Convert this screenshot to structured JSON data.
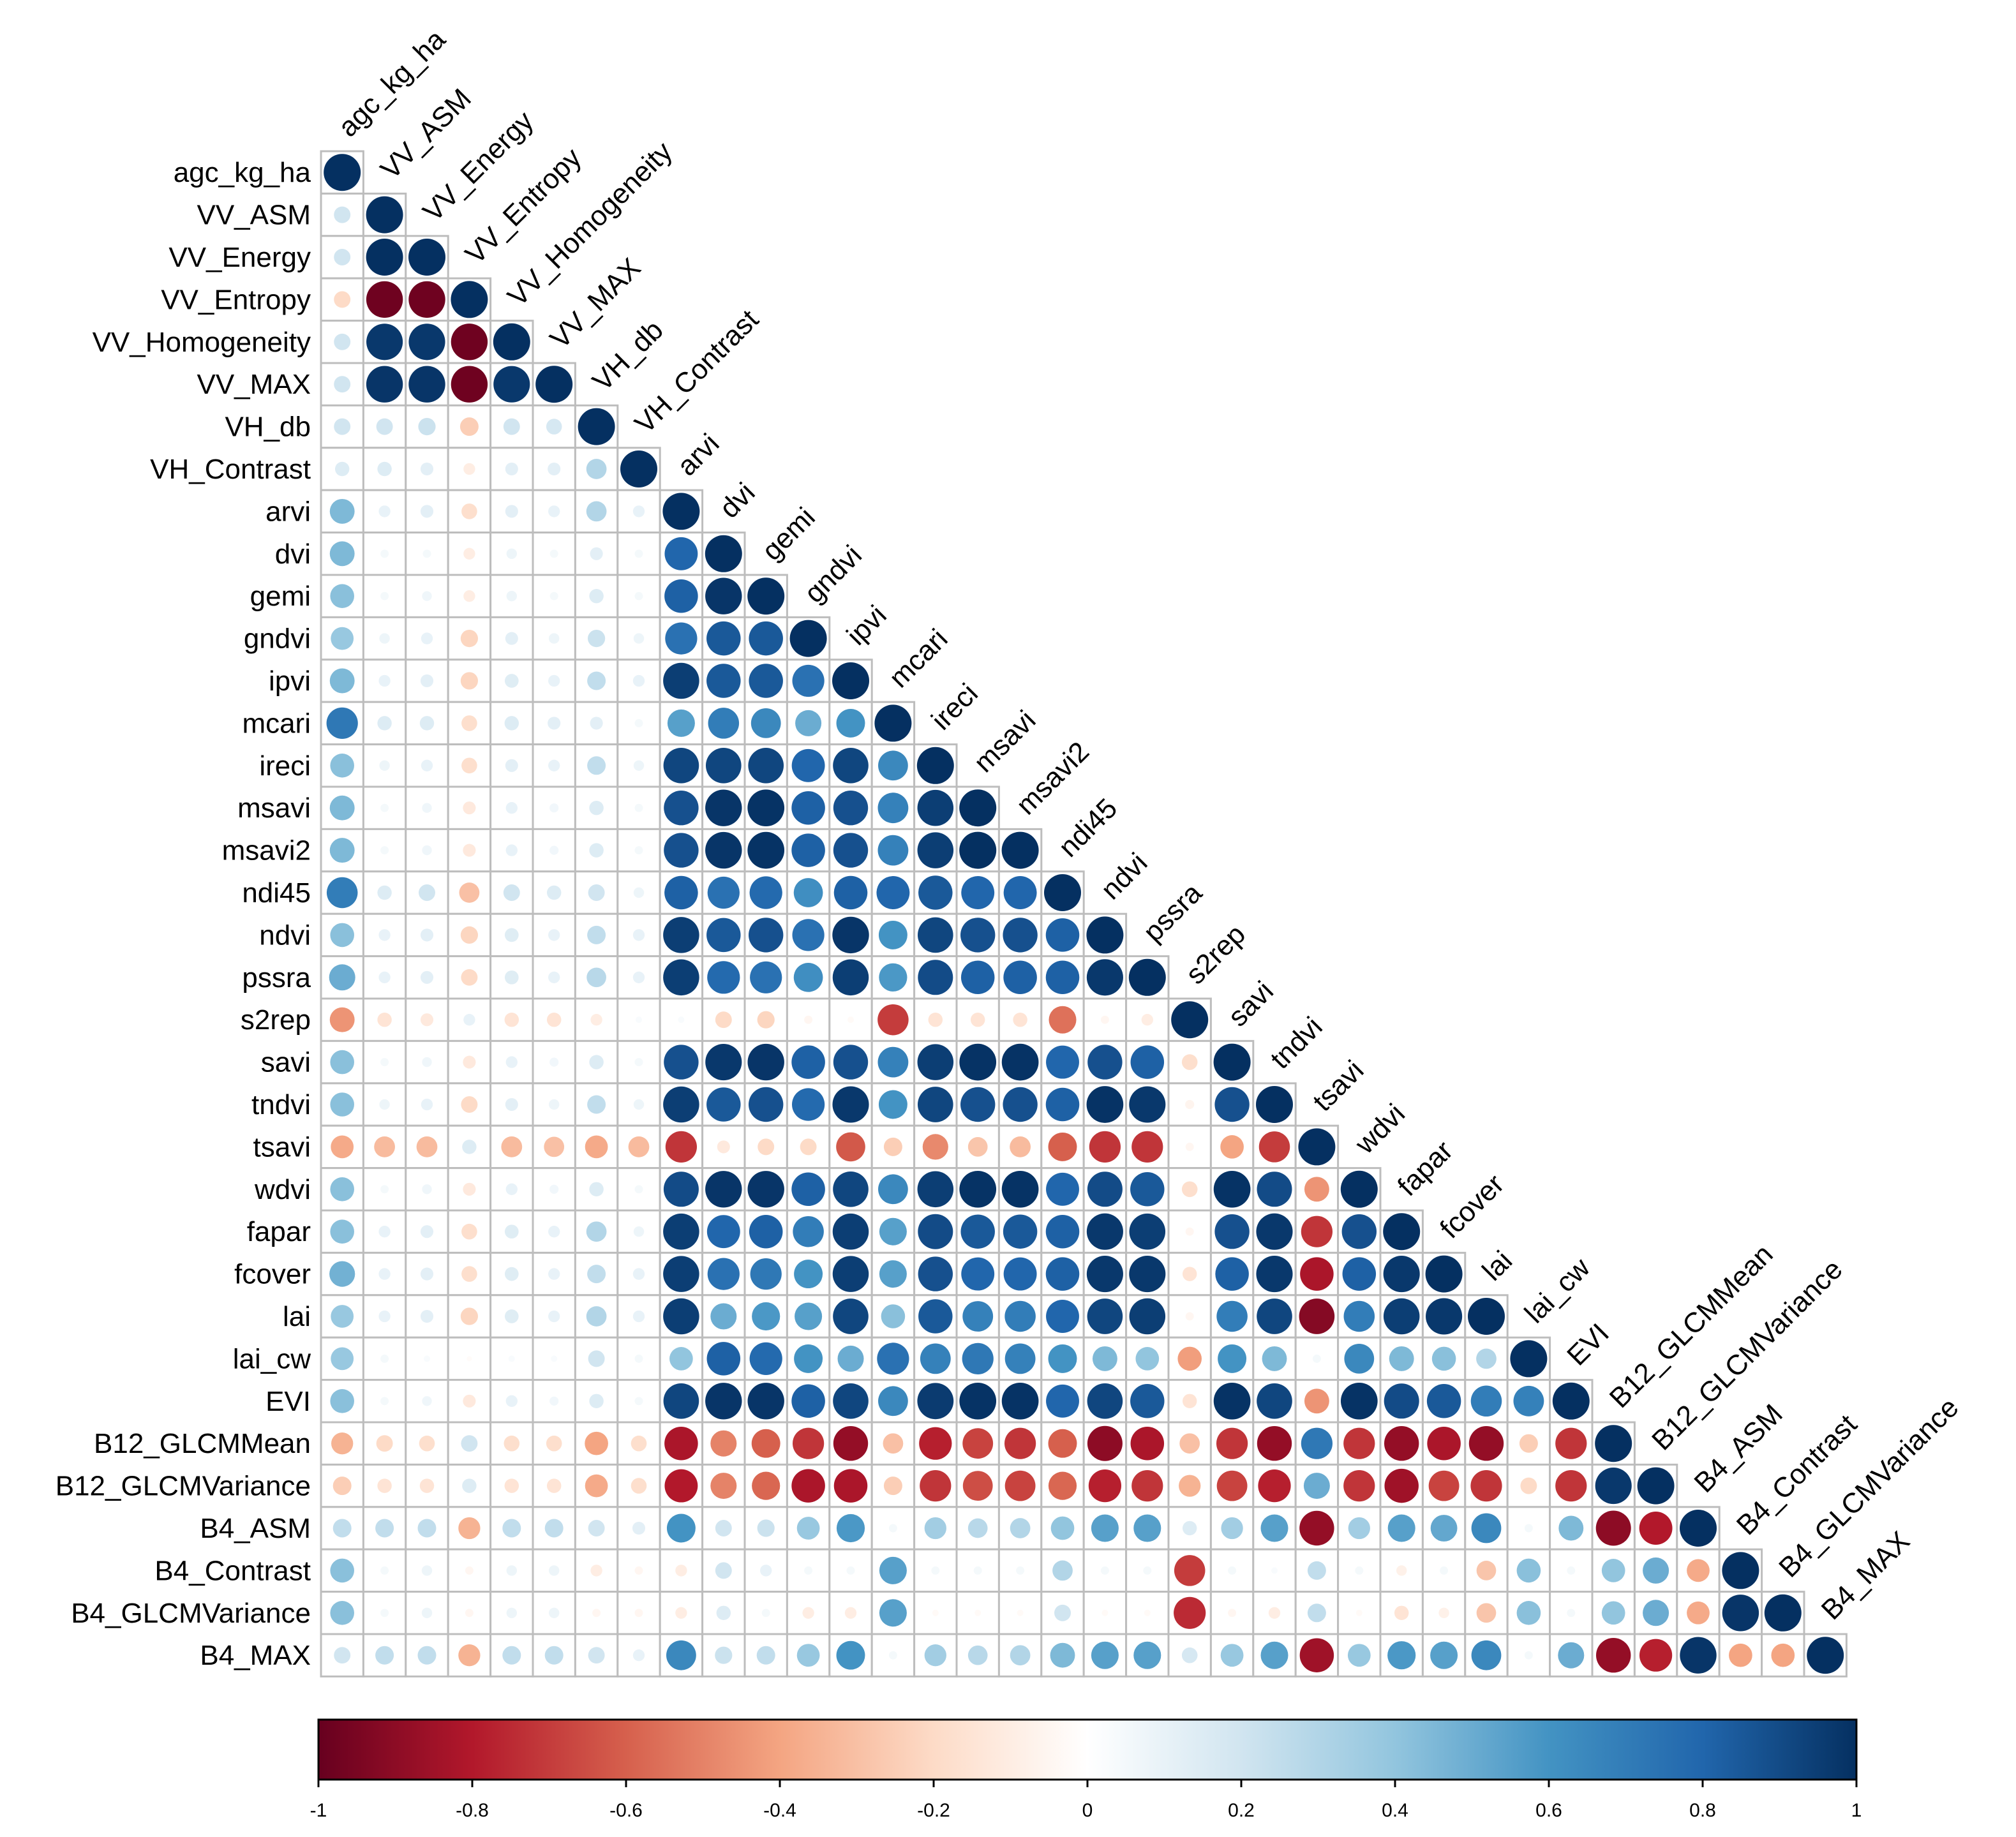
{
  "chart_data": {
    "type": "heatmap",
    "subtype": "correlation-matrix-lower-triangle",
    "marker": "circle",
    "variables": [
      "agc_kg_ha",
      "VV_ASM",
      "VV_Energy",
      "VV_Entropy",
      "VV_Homogeneity",
      "VV_MAX",
      "VH_db",
      "VH_Contrast",
      "arvi",
      "dvi",
      "gemi",
      "gndvi",
      "ipvi",
      "mcari",
      "ireci",
      "msavi",
      "msavi2",
      "ndi45",
      "ndvi",
      "pssra",
      "s2rep",
      "savi",
      "tndvi",
      "tsavi",
      "wdvi",
      "fapar",
      "fcover",
      "lai",
      "lai_cw",
      "EVI",
      "B12_GLCMMean",
      "B12_GLCMVariance",
      "B4_ASM",
      "B4_Contrast",
      "B4_GLCMVariance",
      "B4_MAX"
    ],
    "matrix_lower": [
      [
        1
      ],
      [
        0.2,
        1
      ],
      [
        0.2,
        1,
        1
      ],
      [
        -0.2,
        -0.98,
        -0.98,
        1
      ],
      [
        0.2,
        0.97,
        0.97,
        -0.98,
        1
      ],
      [
        0.2,
        0.98,
        0.98,
        -0.98,
        0.97,
        1
      ],
      [
        0.2,
        0.2,
        0.22,
        -0.25,
        0.2,
        0.18,
        1
      ],
      [
        0.15,
        0.15,
        0.12,
        -0.1,
        0.12,
        0.12,
        0.3,
        1
      ],
      [
        0.45,
        0.1,
        0.12,
        -0.18,
        0.12,
        0.1,
        0.3,
        0.1,
        1
      ],
      [
        0.45,
        0.05,
        0.05,
        -0.1,
        0.08,
        0.05,
        0.12,
        0.05,
        0.8,
        1
      ],
      [
        0.42,
        0.05,
        0.07,
        -0.1,
        0.08,
        0.05,
        0.15,
        0.05,
        0.82,
        0.98,
        1
      ],
      [
        0.38,
        0.08,
        0.1,
        -0.22,
        0.12,
        0.08,
        0.22,
        0.08,
        0.75,
        0.85,
        0.85,
        1
      ],
      [
        0.45,
        0.1,
        0.12,
        -0.22,
        0.14,
        0.1,
        0.25,
        0.1,
        0.95,
        0.85,
        0.85,
        0.75,
        1
      ],
      [
        0.72,
        0.15,
        0.15,
        -0.18,
        0.15,
        0.12,
        0.12,
        0.05,
        0.55,
        0.7,
        0.65,
        0.5,
        0.6,
        1
      ],
      [
        0.42,
        0.08,
        0.1,
        -0.18,
        0.12,
        0.1,
        0.25,
        0.08,
        0.92,
        0.92,
        0.92,
        0.8,
        0.92,
        0.65,
        1
      ],
      [
        0.45,
        0.05,
        0.07,
        -0.12,
        0.1,
        0.06,
        0.15,
        0.05,
        0.88,
        0.98,
        0.99,
        0.82,
        0.88,
        0.68,
        0.95,
        1
      ],
      [
        0.45,
        0.05,
        0.07,
        -0.12,
        0.1,
        0.06,
        0.15,
        0.05,
        0.88,
        0.98,
        0.99,
        0.82,
        0.88,
        0.68,
        0.95,
        1,
        1
      ],
      [
        0.7,
        0.15,
        0.2,
        -0.3,
        0.2,
        0.15,
        0.2,
        0.08,
        0.82,
        0.75,
        0.78,
        0.62,
        0.82,
        0.8,
        0.85,
        0.8,
        0.8,
        1
      ],
      [
        0.42,
        0.1,
        0.12,
        -0.22,
        0.14,
        0.1,
        0.25,
        0.1,
        0.95,
        0.85,
        0.88,
        0.75,
        0.98,
        0.6,
        0.92,
        0.88,
        0.88,
        0.82,
        1
      ],
      [
        0.5,
        0.1,
        0.12,
        -0.2,
        0.14,
        0.1,
        0.28,
        0.1,
        0.95,
        0.78,
        0.75,
        0.62,
        0.95,
        0.58,
        0.9,
        0.82,
        0.82,
        0.82,
        0.97,
        1
      ],
      [
        -0.45,
        -0.15,
        -0.12,
        0.1,
        -0.15,
        -0.15,
        -0.1,
        0.03,
        0.03,
        -0.2,
        -0.22,
        -0.05,
        -0.03,
        -0.7,
        -0.15,
        -0.15,
        -0.15,
        -0.55,
        -0.05,
        -0.1,
        1
      ],
      [
        0.42,
        0.05,
        0.07,
        -0.12,
        0.1,
        0.06,
        0.15,
        0.05,
        0.88,
        0.97,
        0.98,
        0.82,
        0.88,
        0.68,
        0.95,
        0.99,
        0.99,
        0.8,
        0.88,
        0.82,
        -0.18,
        1
      ],
      [
        0.42,
        0.08,
        0.1,
        -0.2,
        0.12,
        0.08,
        0.25,
        0.08,
        0.95,
        0.85,
        0.88,
        0.78,
        0.97,
        0.6,
        0.92,
        0.88,
        0.88,
        0.82,
        0.99,
        0.97,
        -0.06,
        0.88,
        1
      ],
      [
        -0.38,
        -0.32,
        -0.32,
        0.15,
        -0.32,
        -0.3,
        -0.38,
        -0.32,
        -0.72,
        -0.12,
        -0.2,
        -0.2,
        -0.62,
        -0.25,
        -0.48,
        -0.28,
        -0.32,
        -0.6,
        -0.72,
        -0.72,
        -0.05,
        -0.4,
        -0.7,
        1
      ],
      [
        0.42,
        0.05,
        0.07,
        -0.12,
        0.1,
        0.06,
        0.15,
        0.05,
        0.9,
        0.98,
        0.98,
        0.82,
        0.92,
        0.65,
        0.95,
        0.99,
        0.99,
        0.8,
        0.9,
        0.85,
        -0.18,
        0.99,
        0.9,
        -0.45,
        1
      ],
      [
        0.42,
        0.1,
        0.12,
        -0.18,
        0.14,
        0.1,
        0.3,
        0.08,
        0.95,
        0.8,
        0.82,
        0.7,
        0.95,
        0.55,
        0.9,
        0.85,
        0.85,
        0.82,
        0.97,
        0.95,
        -0.05,
        0.88,
        0.97,
        -0.72,
        0.88,
        1
      ],
      [
        0.48,
        0.1,
        0.12,
        -0.18,
        0.14,
        0.1,
        0.25,
        0.1,
        0.95,
        0.75,
        0.72,
        0.6,
        0.95,
        0.55,
        0.88,
        0.8,
        0.8,
        0.82,
        0.97,
        0.97,
        -0.15,
        0.82,
        0.97,
        -0.82,
        0.82,
        0.97,
        1
      ],
      [
        0.38,
        0.1,
        0.12,
        -0.22,
        0.14,
        0.1,
        0.3,
        0.1,
        0.95,
        0.5,
        0.58,
        0.55,
        0.92,
        0.42,
        0.85,
        0.68,
        0.7,
        0.8,
        0.92,
        0.95,
        -0.05,
        0.7,
        0.92,
        -0.92,
        0.7,
        0.95,
        0.97,
        1
      ],
      [
        0.38,
        0.05,
        0.03,
        -0.02,
        0.03,
        0.03,
        0.2,
        0.05,
        0.4,
        0.82,
        0.78,
        0.6,
        0.5,
        0.75,
        0.68,
        0.72,
        0.68,
        0.6,
        0.45,
        0.4,
        -0.42,
        0.6,
        0.45,
        0.05,
        0.65,
        0.45,
        0.42,
        0.3,
        1
      ],
      [
        0.42,
        0.05,
        0.07,
        -0.12,
        0.1,
        0.06,
        0.15,
        0.05,
        0.92,
        0.98,
        0.98,
        0.82,
        0.92,
        0.65,
        0.96,
        0.99,
        0.99,
        0.8,
        0.92,
        0.85,
        -0.15,
        0.99,
        0.92,
        -0.45,
        0.99,
        0.9,
        0.85,
        0.7,
        0.68,
        1
      ],
      [
        -0.35,
        -0.2,
        -0.18,
        0.2,
        -0.18,
        -0.18,
        -0.4,
        -0.18,
        -0.82,
        -0.5,
        -0.6,
        -0.72,
        -0.88,
        -0.3,
        -0.78,
        -0.68,
        -0.72,
        -0.6,
        -0.9,
        -0.82,
        -0.3,
        -0.72,
        -0.88,
        0.72,
        -0.72,
        -0.88,
        -0.82,
        -0.88,
        -0.25,
        -0.72,
        1
      ],
      [
        -0.25,
        -0.15,
        -0.15,
        0.15,
        -0.15,
        -0.15,
        -0.38,
        -0.18,
        -0.8,
        -0.5,
        -0.58,
        -0.82,
        -0.82,
        -0.25,
        -0.72,
        -0.65,
        -0.68,
        -0.58,
        -0.78,
        -0.72,
        -0.35,
        -0.68,
        -0.78,
        0.5,
        -0.72,
        -0.85,
        -0.68,
        -0.72,
        -0.2,
        -0.72,
        0.97,
        1
      ],
      [
        0.25,
        0.25,
        0.25,
        -0.35,
        0.25,
        0.25,
        0.2,
        0.12,
        0.6,
        0.2,
        0.22,
        0.38,
        0.58,
        0.05,
        0.35,
        0.28,
        0.3,
        0.4,
        0.55,
        0.55,
        0.15,
        0.35,
        0.55,
        -0.88,
        0.35,
        0.55,
        0.52,
        0.65,
        0.05,
        0.45,
        -0.9,
        -0.8,
        1
      ],
      [
        0.42,
        0.05,
        0.08,
        -0.05,
        0.08,
        0.08,
        -0.1,
        -0.05,
        -0.1,
        0.2,
        0.1,
        0.05,
        0.05,
        0.55,
        0.05,
        0.05,
        0.05,
        0.3,
        0.05,
        0.05,
        -0.7,
        0.05,
        0.03,
        0.25,
        0.05,
        -0.08,
        0.05,
        -0.28,
        0.42,
        0.05,
        0.4,
        0.5,
        -0.38,
        1
      ],
      [
        0.42,
        0.05,
        0.08,
        -0.05,
        0.08,
        0.08,
        -0.05,
        -0.05,
        -0.1,
        0.15,
        0.05,
        -0.1,
        -0.1,
        0.55,
        -0.03,
        -0.03,
        -0.03,
        0.2,
        -0.03,
        -0.03,
        -0.75,
        -0.05,
        -0.1,
        0.25,
        -0.03,
        -0.15,
        -0.08,
        -0.28,
        0.42,
        0.05,
        0.4,
        0.5,
        -0.38,
        0.98,
        1
      ],
      [
        0.2,
        0.25,
        0.25,
        -0.35,
        0.25,
        0.25,
        0.2,
        0.1,
        0.65,
        0.22,
        0.25,
        0.38,
        0.6,
        0.05,
        0.35,
        0.28,
        0.3,
        0.45,
        0.55,
        0.55,
        0.18,
        0.38,
        0.55,
        -0.85,
        0.38,
        0.58,
        0.55,
        0.65,
        0.05,
        0.5,
        -0.88,
        -0.78,
        0.98,
        -0.4,
        -0.4,
        1
      ]
    ],
    "colorbar": {
      "ticks": [
        "-1",
        "-0.8",
        "-0.6",
        "-0.4",
        "-0.2",
        "0",
        "0.2",
        "0.4",
        "0.6",
        "0.8",
        "1"
      ],
      "range": [
        -1,
        1
      ]
    },
    "colorscale": [
      "#67001f",
      "#b2182b",
      "#d6604d",
      "#f4a582",
      "#fddbc7",
      "#ffffff",
      "#d1e5f0",
      "#92c5de",
      "#4393c3",
      "#2166ac",
      "#053061"
    ]
  }
}
